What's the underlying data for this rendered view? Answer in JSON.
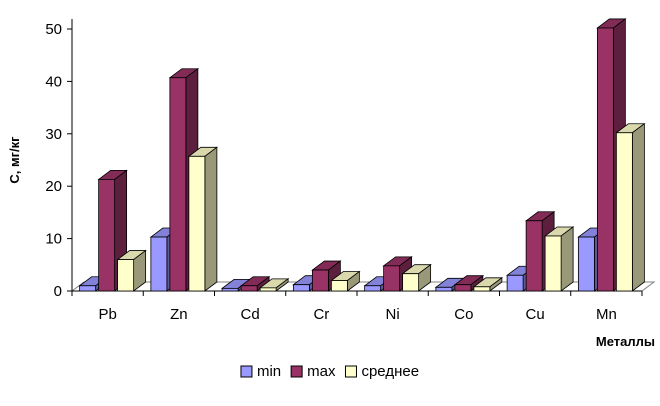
{
  "chart_data": {
    "type": "bar",
    "title": "",
    "xlabel": "Металлы",
    "ylabel": "С, мг/кг",
    "ylim": [
      0,
      50
    ],
    "yticks": [
      0,
      10,
      20,
      30,
      40,
      50
    ],
    "categories": [
      "Pb",
      "Zn",
      "Cd",
      "Cr",
      "Ni",
      "Co",
      "Cu",
      "Mn"
    ],
    "series": [
      {
        "name": "min",
        "values": [
          1,
          10.3,
          0.5,
          1.2,
          1,
          0.7,
          3,
          10.3
        ],
        "color": "#9999ff"
      },
      {
        "name": "max",
        "values": [
          21.3,
          40.7,
          1,
          4,
          4.8,
          1.2,
          13.4,
          50.2
        ],
        "color": "#993366"
      },
      {
        "name": "среднее",
        "values": [
          6,
          25.7,
          0.6,
          2,
          3.3,
          0.8,
          10.5,
          30.2
        ],
        "color": "#ffffcc"
      }
    ],
    "legend_position": "bottom",
    "grid": false,
    "style": "3d-clustered-column"
  }
}
